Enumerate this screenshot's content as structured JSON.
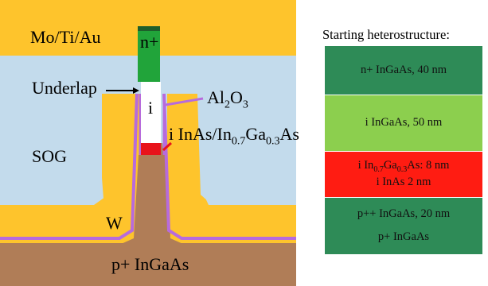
{
  "device": {
    "labels": {
      "metal": "Mo/Ti/Au",
      "n_plus": "n+",
      "underlap": "Underlap",
      "i": "i",
      "oxide": "Al",
      "oxide_sub": "2",
      "oxide_tail": "O",
      "oxide_sub2": "3",
      "channel_a": "i InAs/In",
      "channel_sub1": "0.7",
      "channel_b": "Ga",
      "channel_sub2": "0.3",
      "channel_c": "As",
      "sog": "SOG",
      "w": "W",
      "substrate": "p+ InGaAs"
    },
    "colors": {
      "metal": "#fec42c",
      "sog": "#c3dbec",
      "substrate": "#b07d57",
      "n_plus": "#21a43a",
      "channel": "#e8131b",
      "oxide": "#b76bdc",
      "intrinsic": "#ffffff"
    }
  },
  "stack": {
    "title": "Starting heterostructure:",
    "layers": [
      {
        "line1": "n+ InGaAs, 40 nm",
        "color": "#2e8b57"
      },
      {
        "line1": "i InGaAs, 50 nm",
        "color": "#8ccf4e"
      },
      {
        "line1a": "i In",
        "sub1": "0.7",
        "line1b": "Ga",
        "sub2": "0.3",
        "line1c": "As: 8 nm",
        "line2": "i InAs 2 nm",
        "color": "#ff1c12"
      },
      {
        "line1": "p++ InGaAs, 20 nm",
        "line2": "p+ InGaAs",
        "color": "#2e8b57"
      }
    ]
  }
}
